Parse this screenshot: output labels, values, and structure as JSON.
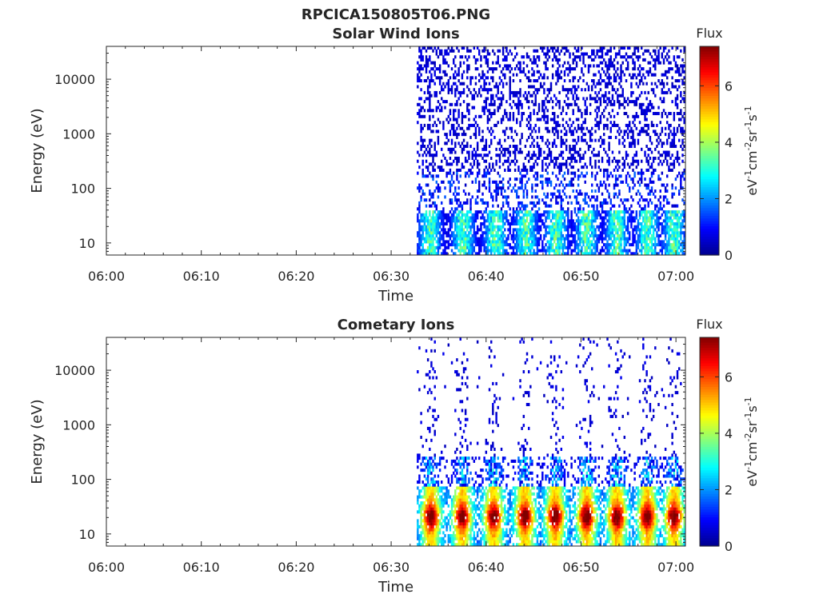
{
  "figure": {
    "title": "RPCICA150805T06.PNG"
  },
  "colors": {
    "axis": "#262626",
    "colormap": [
      "#00008f",
      "#0000ff",
      "#0080ff",
      "#00ffff",
      "#80ff80",
      "#ffff00",
      "#ff8000",
      "#ff0000",
      "#800000"
    ]
  },
  "chart_data": [
    {
      "type": "heatmap",
      "title": "Solar Wind Ions",
      "xlabel": "Time",
      "ylabel": "Energy (eV)",
      "x_ticks": [
        "06:00",
        "06:10",
        "06:20",
        "06:30",
        "06:40",
        "06:50",
        "07:00"
      ],
      "x_range_min": [
        0,
        61
      ],
      "y_ticks": [
        "10",
        "100",
        "1000",
        "10000"
      ],
      "y_scale": "log",
      "y_range": [
        6,
        40000
      ],
      "data_onset_min": 32.7,
      "colorbar": {
        "label": "Flux",
        "units": "eV-1cm-2sr-1s-1",
        "ticks": [
          "0",
          "2",
          "4",
          "6"
        ],
        "range": [
          0,
          7.4
        ]
      },
      "pattern": "sparse",
      "bursts_min": [
        34,
        37.5,
        40.9,
        44.1,
        47.3,
        50.5,
        53.7,
        56.9,
        59.7
      ]
    },
    {
      "type": "heatmap",
      "title": "Cometary Ions",
      "xlabel": "Time",
      "ylabel": "Energy (eV)",
      "x_ticks": [
        "06:00",
        "06:10",
        "06:20",
        "06:30",
        "06:40",
        "06:50",
        "07:00"
      ],
      "x_range_min": [
        0,
        61
      ],
      "y_ticks": [
        "10",
        "100",
        "1000",
        "10000"
      ],
      "y_scale": "log",
      "y_range": [
        6,
        40000
      ],
      "data_onset_min": 32.7,
      "colorbar": {
        "label": "Flux",
        "units": "eV-1cm-2sr-1s-1",
        "ticks": [
          "0",
          "2",
          "4",
          "6"
        ],
        "range": [
          0,
          7.4
        ]
      },
      "pattern": "bursts",
      "bursts_min": [
        34.1,
        37.4,
        40.7,
        44.0,
        47.2,
        50.5,
        53.7,
        56.9,
        59.7
      ]
    }
  ]
}
